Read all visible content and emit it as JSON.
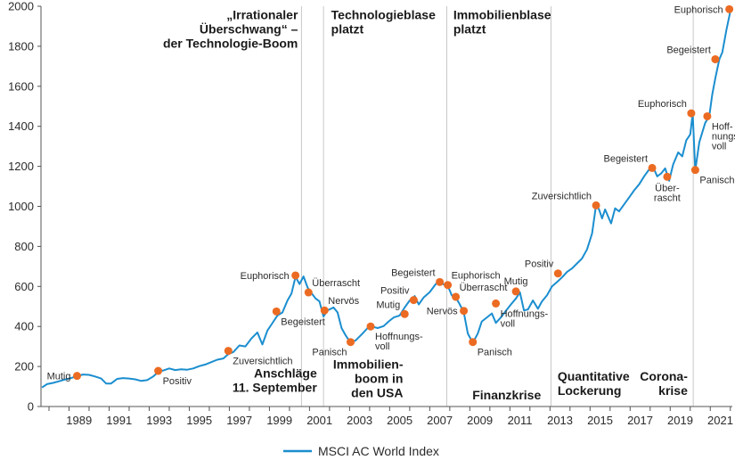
{
  "chart_data": {
    "type": "line",
    "title": "",
    "xlabel": "",
    "ylabel": "",
    "ylim": [
      0,
      2000
    ],
    "xlim": [
      1987.6,
      2022.1
    ],
    "y_ticks": [
      0,
      200,
      400,
      600,
      800,
      1000,
      1200,
      1400,
      1600,
      1800,
      2000
    ],
    "x_tick_labels": [
      "1989",
      "1991",
      "1993",
      "1995",
      "1997",
      "1999",
      "2001",
      "2003",
      "2005",
      "2007",
      "2009",
      "2011",
      "2013",
      "2015",
      "2017",
      "2019",
      "2021"
    ],
    "grid": false,
    "legend_position": "bottom-center",
    "series": [
      {
        "name": "MSCI AC World Index",
        "color": "#1b8ecf",
        "points": [
          [
            1987.65,
            95
          ],
          [
            1987.9,
            112
          ],
          [
            1988.2,
            118
          ],
          [
            1988.5,
            126
          ],
          [
            1988.8,
            135
          ],
          [
            1989.1,
            142
          ],
          [
            1989.4,
            152
          ],
          [
            1989.7,
            160
          ],
          [
            1990.0,
            158
          ],
          [
            1990.3,
            150
          ],
          [
            1990.6,
            140
          ],
          [
            1990.85,
            115
          ],
          [
            1991.1,
            115
          ],
          [
            1991.4,
            138
          ],
          [
            1991.7,
            142
          ],
          [
            1992.0,
            140
          ],
          [
            1992.3,
            136
          ],
          [
            1992.6,
            128
          ],
          [
            1992.9,
            132
          ],
          [
            1993.2,
            150
          ],
          [
            1993.45,
            172
          ],
          [
            1993.7,
            180
          ],
          [
            1994.0,
            190
          ],
          [
            1994.3,
            182
          ],
          [
            1994.6,
            186
          ],
          [
            1994.9,
            184
          ],
          [
            1995.2,
            190
          ],
          [
            1995.5,
            202
          ],
          [
            1995.8,
            210
          ],
          [
            1996.1,
            222
          ],
          [
            1996.4,
            234
          ],
          [
            1996.7,
            240
          ],
          [
            1996.95,
            262
          ],
          [
            1997.2,
            272
          ],
          [
            1997.5,
            305
          ],
          [
            1997.8,
            300
          ],
          [
            1998.1,
            340
          ],
          [
            1998.4,
            370
          ],
          [
            1998.65,
            310
          ],
          [
            1998.9,
            380
          ],
          [
            1999.1,
            410
          ],
          [
            1999.4,
            455
          ],
          [
            1999.65,
            470
          ],
          [
            1999.9,
            530
          ],
          [
            2000.1,
            565
          ],
          [
            2000.3,
            648
          ],
          [
            2000.5,
            612
          ],
          [
            2000.7,
            650
          ],
          [
            2000.9,
            595
          ],
          [
            2001.1,
            566
          ],
          [
            2001.3,
            540
          ],
          [
            2001.5,
            525
          ],
          [
            2001.7,
            450
          ],
          [
            2001.9,
            480
          ],
          [
            2002.2,
            495
          ],
          [
            2002.4,
            470
          ],
          [
            2002.6,
            392
          ],
          [
            2002.8,
            356
          ],
          [
            2003.05,
            318
          ],
          [
            2003.3,
            330
          ],
          [
            2003.6,
            360
          ],
          [
            2003.9,
            392
          ],
          [
            2004.1,
            400
          ],
          [
            2004.4,
            392
          ],
          [
            2004.7,
            402
          ],
          [
            2004.95,
            425
          ],
          [
            2005.2,
            445
          ],
          [
            2005.5,
            455
          ],
          [
            2005.75,
            495
          ],
          [
            2006.0,
            530
          ],
          [
            2006.25,
            552
          ],
          [
            2006.45,
            510
          ],
          [
            2006.7,
            545
          ],
          [
            2007.0,
            572
          ],
          [
            2007.3,
            612
          ],
          [
            2007.5,
            628
          ],
          [
            2007.7,
            610
          ],
          [
            2007.9,
            603
          ],
          [
            2008.1,
            555
          ],
          [
            2008.3,
            545
          ],
          [
            2008.5,
            510
          ],
          [
            2008.7,
            470
          ],
          [
            2008.9,
            365
          ],
          [
            2009.15,
            318
          ],
          [
            2009.4,
            365
          ],
          [
            2009.6,
            425
          ],
          [
            2009.85,
            445
          ],
          [
            2010.1,
            465
          ],
          [
            2010.3,
            418
          ],
          [
            2010.55,
            445
          ],
          [
            2010.8,
            478
          ],
          [
            2011.05,
            510
          ],
          [
            2011.3,
            540
          ],
          [
            2011.5,
            570
          ],
          [
            2011.7,
            480
          ],
          [
            2011.9,
            485
          ],
          [
            2012.15,
            530
          ],
          [
            2012.4,
            488
          ],
          [
            2012.6,
            525
          ],
          [
            2012.85,
            555
          ],
          [
            2013.1,
            600
          ],
          [
            2013.35,
            622
          ],
          [
            2013.6,
            645
          ],
          [
            2013.85,
            672
          ],
          [
            2014.1,
            690
          ],
          [
            2014.35,
            715
          ],
          [
            2014.6,
            740
          ],
          [
            2014.85,
            785
          ],
          [
            2015.1,
            865
          ],
          [
            2015.3,
            1005
          ],
          [
            2015.45,
            985
          ],
          [
            2015.6,
            940
          ],
          [
            2015.75,
            985
          ],
          [
            2015.9,
            950
          ],
          [
            2016.05,
            915
          ],
          [
            2016.25,
            990
          ],
          [
            2016.45,
            975
          ],
          [
            2016.7,
            1010
          ],
          [
            2016.95,
            1045
          ],
          [
            2017.2,
            1080
          ],
          [
            2017.45,
            1110
          ],
          [
            2017.7,
            1150
          ],
          [
            2017.95,
            1185
          ],
          [
            2018.15,
            1195
          ],
          [
            2018.35,
            1150
          ],
          [
            2018.55,
            1165
          ],
          [
            2018.75,
            1190
          ],
          [
            2018.95,
            1128
          ],
          [
            2019.15,
            1210
          ],
          [
            2019.4,
            1270
          ],
          [
            2019.6,
            1250
          ],
          [
            2019.8,
            1330
          ],
          [
            2020.0,
            1360
          ],
          [
            2020.12,
            1465
          ],
          [
            2020.25,
            1180
          ],
          [
            2020.45,
            1320
          ],
          [
            2020.6,
            1370
          ],
          [
            2020.75,
            1418
          ],
          [
            2020.95,
            1450
          ],
          [
            2021.1,
            1560
          ],
          [
            2021.25,
            1640
          ],
          [
            2021.45,
            1735
          ],
          [
            2021.6,
            1770
          ],
          [
            2021.8,
            1880
          ],
          [
            2021.95,
            1950
          ],
          [
            2022.02,
            1985
          ]
        ]
      }
    ],
    "sentiment_points": [
      {
        "label": "Mutig",
        "x": 1989.4,
        "y": 153,
        "anchor": "left",
        "lines": [
          "Mutig"
        ]
      },
      {
        "label": "Positiv",
        "x": 1993.45,
        "y": 178,
        "anchor": "below-right",
        "lines": [
          "Positiv"
        ]
      },
      {
        "label": "Zuversichtlich",
        "x": 1996.95,
        "y": 278,
        "anchor": "below-right",
        "lines": [
          "Zuversichtlich"
        ]
      },
      {
        "label": "Begeistert",
        "x": 1999.35,
        "y": 475,
        "anchor": "below-right",
        "lines": [
          "Begeistert"
        ]
      },
      {
        "label": "Euphorisch",
        "x": 2000.3,
        "y": 655,
        "anchor": "left",
        "lines": [
          "Euphorisch"
        ]
      },
      {
        "label": "Überrascht",
        "x": 2000.95,
        "y": 570,
        "anchor": "above-right",
        "lines": [
          "Überrascht"
        ]
      },
      {
        "label": "Nervös",
        "x": 2001.75,
        "y": 480,
        "anchor": "above-right",
        "lines": [
          "Nervös"
        ]
      },
      {
        "label": "Panisch",
        "x": 2003.05,
        "y": 322,
        "anchor": "below-left",
        "lines": [
          "Panisch"
        ]
      },
      {
        "label": "Hoffnungsvoll",
        "x": 2004.05,
        "y": 400,
        "anchor": "below-right",
        "lines": [
          "Hoffnungs-",
          "voll"
        ]
      },
      {
        "label": "Mutig",
        "x": 2005.75,
        "y": 462,
        "anchor": "above-left",
        "lines": [
          "Mutig"
        ]
      },
      {
        "label": "Positiv",
        "x": 2006.2,
        "y": 532,
        "anchor": "above-left",
        "lines": [
          "Positiv"
        ]
      },
      {
        "label": "Begeistert",
        "x": 2007.5,
        "y": 622,
        "anchor": "above-left",
        "lines": [
          "Begeistert"
        ]
      },
      {
        "label": "Euphorisch",
        "x": 2007.9,
        "y": 607,
        "anchor": "above-right",
        "lines": [
          "Euphorisch"
        ]
      },
      {
        "label": "Überrascht",
        "x": 2008.3,
        "y": 548,
        "anchor": "above-right",
        "lines": [
          "Überrascht"
        ]
      },
      {
        "label": "Nervös",
        "x": 2008.7,
        "y": 478,
        "anchor": "left",
        "lines": [
          "Nervös"
        ]
      },
      {
        "label": "Panisch",
        "x": 2009.15,
        "y": 322,
        "anchor": "below-right",
        "lines": [
          "Panisch"
        ]
      },
      {
        "label": "Hoffnungsvoll",
        "x": 2010.3,
        "y": 515,
        "anchor": "below-right",
        "lines": [
          "Hoffnungs-",
          "voll"
        ]
      },
      {
        "label": "Mutig",
        "x": 2011.3,
        "y": 575,
        "anchor": "above",
        "lines": [
          "Mutig"
        ]
      },
      {
        "label": "Positiv",
        "x": 2013.4,
        "y": 665,
        "anchor": "above-left",
        "lines": [
          "Positiv"
        ]
      },
      {
        "label": "Zuversichtlich",
        "x": 2015.3,
        "y": 1005,
        "anchor": "above-left",
        "lines": [
          "Zuversichtlich"
        ]
      },
      {
        "label": "Begeistert",
        "x": 2018.1,
        "y": 1192,
        "anchor": "above-left",
        "lines": [
          "Begeistert"
        ]
      },
      {
        "label": "Überrascht",
        "x": 2018.85,
        "y": 1148,
        "anchor": "below",
        "lines": [
          "Über-",
          "rascht"
        ]
      },
      {
        "label": "Euphorisch",
        "x": 2020.05,
        "y": 1465,
        "anchor": "above-left",
        "lines": [
          "Euphorisch"
        ]
      },
      {
        "label": "Panisch",
        "x": 2020.25,
        "y": 1182,
        "anchor": "below-right",
        "lines": [
          "Panisch"
        ]
      },
      {
        "label": "Hoffnungsvoll",
        "x": 2020.85,
        "y": 1450,
        "anchor": "below-right",
        "lines": [
          "Hoff-",
          "nungs-",
          "voll"
        ]
      },
      {
        "label": "Begeistert",
        "x": 2021.25,
        "y": 1735,
        "anchor": "above-left",
        "lines": [
          "Begeistert"
        ]
      },
      {
        "label": "Euphorisch",
        "x": 2021.95,
        "y": 1985,
        "anchor": "left",
        "lines": [
          "Euphorisch"
        ]
      }
    ],
    "event_lines": [
      2000.6,
      2001.7,
      2007.85,
      2013.05,
      2020.15
    ],
    "annotations": [
      {
        "id": "tech-boom",
        "lines": [
          "„Irrationaler",
          "Überschwang“ –",
          "der Technologie-Boom"
        ],
        "x": 2000.6,
        "y": 1935,
        "align": "right"
      },
      {
        "id": "tech-bubble",
        "lines": [
          "Technologieblase",
          "platzt"
        ],
        "x": 2001.9,
        "y": 1935,
        "align": "left"
      },
      {
        "id": "housing-bubble",
        "lines": [
          "Immobilienblase",
          "platzt"
        ],
        "x": 2008.0,
        "y": 1935,
        "align": "left"
      },
      {
        "id": "attacks",
        "lines": [
          "Anschläge",
          "11. September"
        ],
        "x": 2001.55,
        "y": 145,
        "align": "right"
      },
      {
        "id": "housing-boom",
        "lines": [
          "Immobilien-",
          "boom in",
          "den USA"
        ],
        "x": 2005.85,
        "y": 190,
        "align": "right"
      },
      {
        "id": "financial-crisis",
        "lines": [
          "Finanzkrise"
        ],
        "x": 2008.95,
        "y": 35,
        "align": "left"
      },
      {
        "id": "qe",
        "lines": [
          "Quantitative",
          "Lockerung"
        ],
        "x": 2013.2,
        "y": 130,
        "align": "left"
      },
      {
        "id": "corona",
        "lines": [
          "Corona-",
          "krise"
        ],
        "x": 2020.05,
        "y": 130,
        "align": "right"
      }
    ],
    "legend_label": "MSCI AC World Index",
    "marker_color": "#ec6b22",
    "event_line_color": "#c8c8c8"
  }
}
